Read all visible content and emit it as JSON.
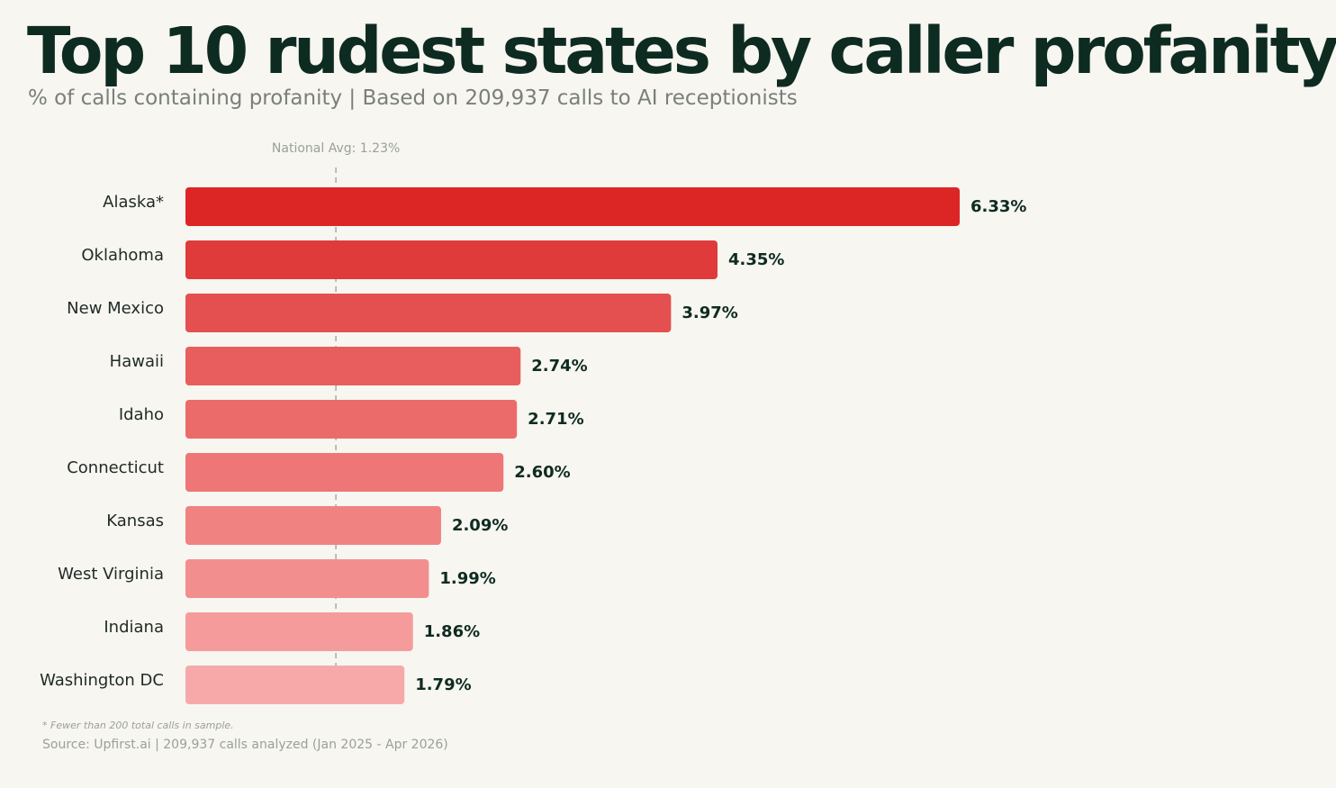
{
  "title": "Top 10 rudest states by caller profanity",
  "subtitle": "% of calls containing profanity | Based on 209,937 calls to AI receptionists",
  "footnote": "* Fewer than 200 total calls in sample.",
  "source": "Source: Upfirst.ai | 209,937 calls analyzed (Jan 2025 - Apr 2026)",
  "chart_data": {
    "type": "bar",
    "orientation": "horizontal",
    "categories": [
      "Alaska*",
      "Oklahoma",
      "New Mexico",
      "Hawaii",
      "Idaho",
      "Connecticut",
      "Kansas",
      "West Virginia",
      "Indiana",
      "Washington DC"
    ],
    "values": [
      6.33,
      4.35,
      3.97,
      2.74,
      2.71,
      2.6,
      2.09,
      1.99,
      1.86,
      1.79
    ],
    "value_labels": [
      "6.33%",
      "4.35%",
      "3.97%",
      "2.74%",
      "2.71%",
      "2.60%",
      "2.09%",
      "1.99%",
      "1.86%",
      "1.79%"
    ],
    "colors": [
      "#dc2626",
      "#e03b3b",
      "#e45050",
      "#e85e5e",
      "#eb6b6b",
      "#ee7676",
      "#f08282",
      "#f38e8e",
      "#f59b9b",
      "#f7a9a9"
    ],
    "reference_line": {
      "label": "National Avg: 1.23%",
      "value": 1.23
    },
    "xlim": [
      0,
      6.33
    ],
    "grid": false,
    "legend": "none"
  }
}
